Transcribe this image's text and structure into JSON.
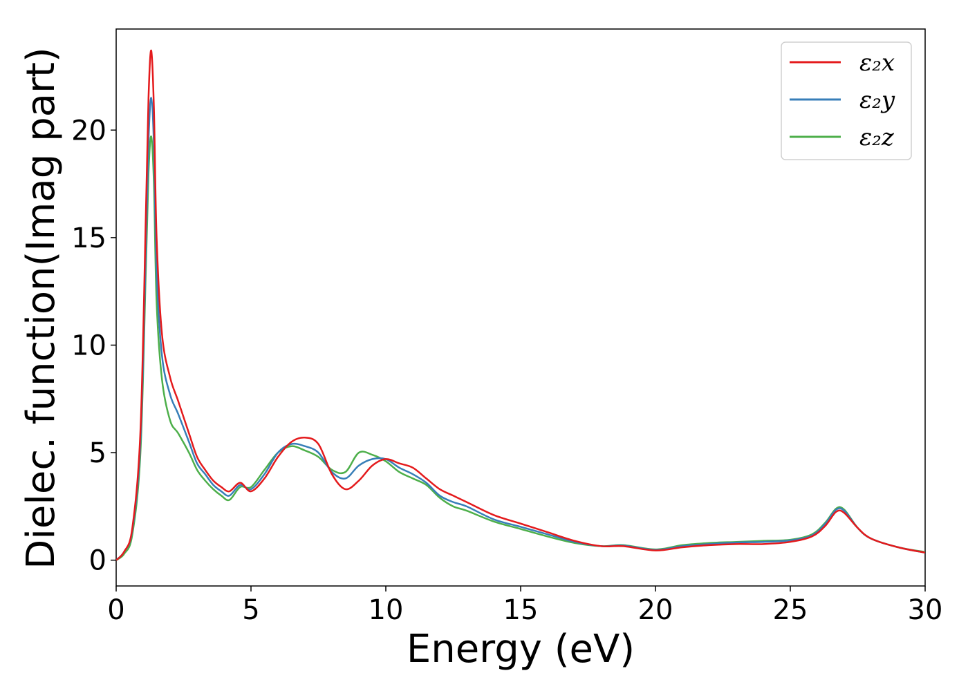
{
  "chart_data": {
    "type": "line",
    "title": "",
    "xlabel": "Energy (eV)",
    "ylabel": "Dielec. function(Imag part)",
    "xlim": [
      0,
      30
    ],
    "ylim": [
      -1.2,
      24.7
    ],
    "xticks": [
      0,
      5,
      10,
      15,
      20,
      25,
      30
    ],
    "yticks": [
      0,
      5,
      10,
      15,
      20
    ],
    "grid": false,
    "legend_position": "top-right",
    "x": [
      0,
      0.3,
      0.6,
      0.9,
      1.1,
      1.2,
      1.3,
      1.4,
      1.5,
      1.7,
      2.0,
      2.3,
      2.7,
      3.0,
      3.3,
      3.6,
      3.9,
      4.2,
      4.6,
      5.0,
      5.5,
      6.0,
      6.5,
      7.0,
      7.5,
      8.0,
      8.5,
      9.0,
      9.5,
      10.0,
      10.5,
      11.0,
      11.5,
      12.0,
      12.5,
      13.0,
      14.0,
      15.0,
      16.0,
      17.0,
      18.0,
      18.8,
      20.0,
      21.0,
      22.0,
      23.0,
      24.0,
      25.0,
      25.8,
      26.3,
      26.7,
      27.0,
      27.5,
      28.0,
      29.0,
      30.0
    ],
    "series": [
      {
        "name": "ε₂x",
        "color": "#e41a1c",
        "values": [
          0.0,
          0.4,
          1.5,
          6.0,
          16.0,
          21.5,
          23.7,
          21.0,
          15.0,
          10.5,
          8.5,
          7.4,
          5.9,
          4.8,
          4.2,
          3.7,
          3.4,
          3.2,
          3.6,
          3.2,
          3.8,
          4.8,
          5.5,
          5.7,
          5.4,
          4.0,
          3.3,
          3.7,
          4.4,
          4.7,
          4.5,
          4.3,
          3.8,
          3.3,
          3.0,
          2.7,
          2.1,
          1.7,
          1.3,
          0.9,
          0.65,
          0.65,
          0.45,
          0.6,
          0.7,
          0.75,
          0.75,
          0.85,
          1.1,
          1.6,
          2.25,
          2.2,
          1.5,
          1.0,
          0.6,
          0.35
        ]
      },
      {
        "name": "ε₂y",
        "color": "#377eb8",
        "values": [
          0.0,
          0.4,
          1.4,
          5.5,
          14.5,
          19.5,
          21.5,
          19.3,
          13.5,
          9.5,
          7.7,
          6.8,
          5.5,
          4.5,
          4.0,
          3.5,
          3.2,
          3.0,
          3.5,
          3.3,
          4.0,
          5.0,
          5.4,
          5.3,
          5.0,
          4.1,
          3.8,
          4.4,
          4.7,
          4.7,
          4.3,
          4.0,
          3.6,
          3.0,
          2.7,
          2.5,
          1.9,
          1.55,
          1.2,
          0.85,
          0.65,
          0.68,
          0.48,
          0.65,
          0.75,
          0.82,
          0.85,
          0.92,
          1.15,
          1.7,
          2.35,
          2.3,
          1.5,
          1.0,
          0.6,
          0.35
        ]
      },
      {
        "name": "ε₂z",
        "color": "#4daf4a",
        "values": [
          0.0,
          0.3,
          1.2,
          5.0,
          13.5,
          18.0,
          19.7,
          17.5,
          12.0,
          8.4,
          6.5,
          5.9,
          5.0,
          4.2,
          3.7,
          3.3,
          3.0,
          2.8,
          3.4,
          3.4,
          4.2,
          5.0,
          5.3,
          5.1,
          4.8,
          4.2,
          4.1,
          5.0,
          4.9,
          4.6,
          4.1,
          3.8,
          3.5,
          2.9,
          2.5,
          2.3,
          1.8,
          1.45,
          1.1,
          0.8,
          0.65,
          0.7,
          0.5,
          0.7,
          0.8,
          0.85,
          0.9,
          0.95,
          1.2,
          1.75,
          2.4,
          2.35,
          1.5,
          1.0,
          0.6,
          0.38
        ]
      }
    ]
  }
}
